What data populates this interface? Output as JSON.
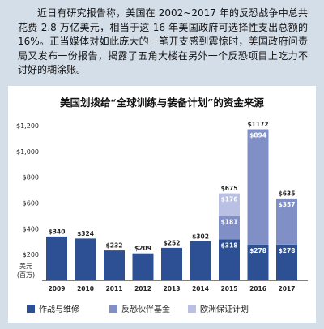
{
  "intro": {
    "text": "近日有研究报告称，美国在 2002~2017 年的反恐战争中总共花费 2.8 万亿美元，相当于这 16 年美国政府可选择性支出总额的 16%。正当媒体对如此庞大的一笔开支感到震惊时，美国政府问责局又发布一份报告，揭露了五角大楼在另外一个反恐项目上吃力不讨好的糊涂账。"
  },
  "chart_data": {
    "type": "bar",
    "stacked": true,
    "title": "美国划拨给“全球训练与装备计划”的资金来源",
    "ylabel": "美元",
    "yunit": "(百万)",
    "value_prefix": "$",
    "categories": [
      "2009",
      "2010",
      "2011",
      "2012",
      "2013",
      "2014",
      "2015",
      "2016",
      "2017"
    ],
    "series": [
      {
        "name": "作战与维修",
        "color": "#2d4f94",
        "values": [
          340,
          324,
          232,
          209,
          252,
          302,
          318,
          278,
          278
        ]
      },
      {
        "name": "反恐伙伴基金",
        "color": "#8090c7",
        "values": [
          null,
          null,
          null,
          null,
          null,
          null,
          181,
          894,
          357
        ]
      },
      {
        "name": "欧洲保证计划",
        "color": "#b9c0e3",
        "values": [
          null,
          null,
          null,
          null,
          null,
          null,
          176,
          null,
          null
        ]
      }
    ],
    "ylim": [
      0,
      1200
    ],
    "y_ticks": [
      {
        "value": 200,
        "label": "$200"
      },
      {
        "value": 400,
        "label": "$400"
      },
      {
        "value": 600,
        "label": "$600"
      },
      {
        "value": 800,
        "label": "$800"
      },
      {
        "value": 1000,
        "label": "$1,000"
      },
      {
        "value": 1200,
        "label": "$1,200"
      }
    ],
    "grid": false,
    "legend": "bottom"
  }
}
